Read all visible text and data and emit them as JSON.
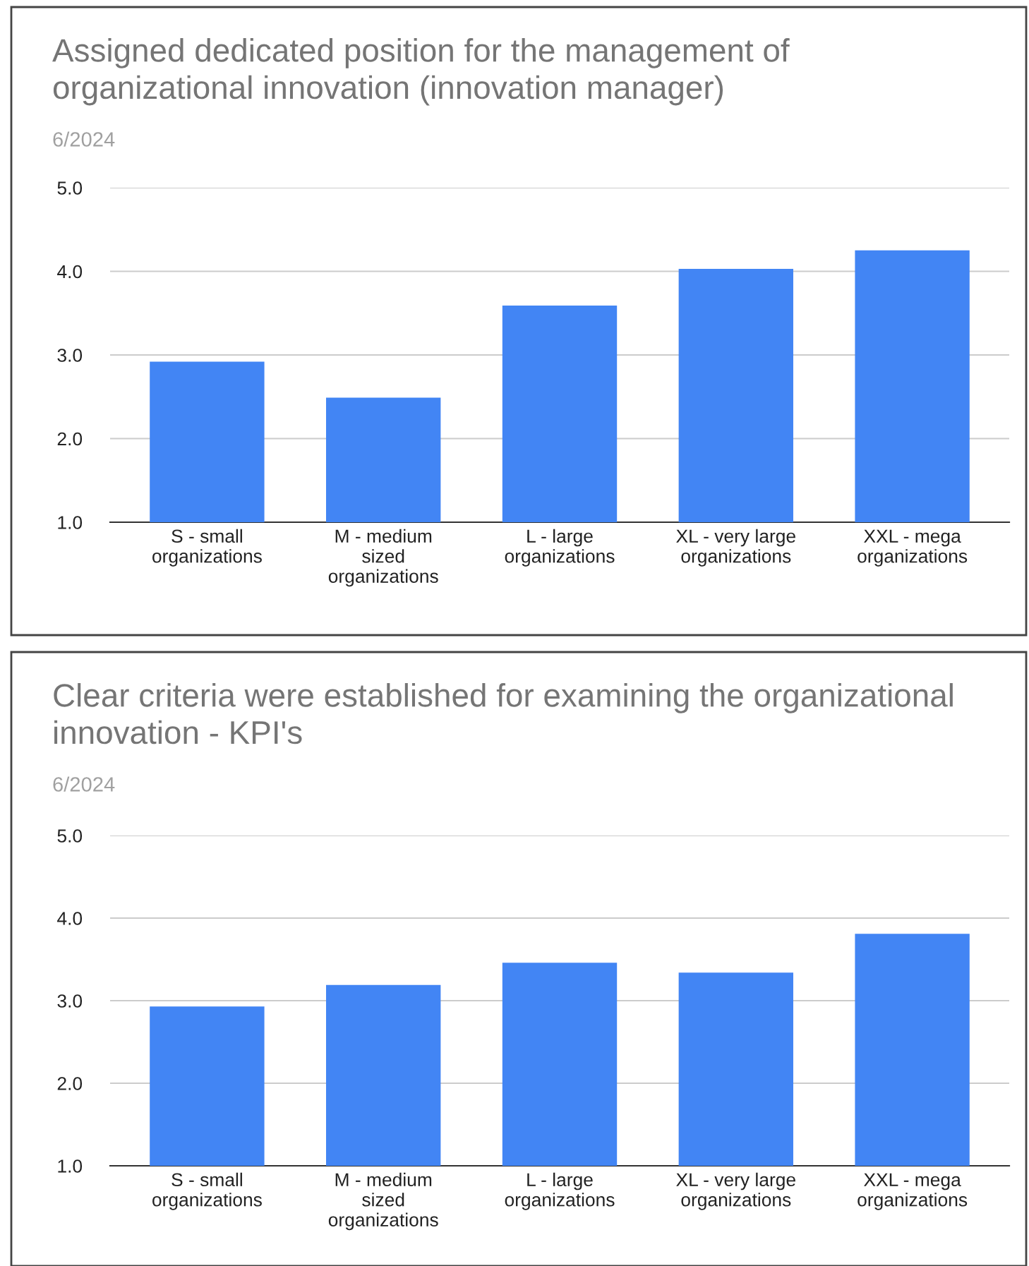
{
  "chart_data": [
    {
      "type": "bar",
      "title": "Assigned dedicated position for the management of\norganizational innovation (innovation manager)",
      "subtitle": "6/2024",
      "categories": [
        "S - small\norganizations",
        "M - medium\nsized\norganizations",
        "L - large\norganizations",
        "XL - very large\norganizations",
        "XXL - mega\norganizations"
      ],
      "values": [
        2.92,
        2.49,
        3.59,
        4.03,
        4.25
      ],
      "color": "#4285f4",
      "ylim": [
        1.0,
        5.0
      ],
      "yticks": [
        {
          "value": 1,
          "label": "1.0"
        },
        {
          "value": 2,
          "label": "2.0"
        },
        {
          "value": 3,
          "label": "3.0"
        },
        {
          "value": 4,
          "label": "4.0"
        },
        {
          "value": 5,
          "label": "5.0"
        }
      ],
      "grid": "y",
      "legend": false
    },
    {
      "type": "bar",
      "title": "Clear criteria were established for examining the organizational\ninnovation - KPI's",
      "subtitle": "6/2024",
      "categories": [
        "S - small\norganizations",
        "M - medium\nsized\norganizations",
        "L - large\norganizations",
        "XL - very large\norganizations",
        "XXL - mega\norganizations"
      ],
      "values": [
        2.93,
        3.19,
        3.46,
        3.34,
        3.81
      ],
      "color": "#4285f4",
      "ylim": [
        1.0,
        5.0
      ],
      "yticks": [
        {
          "value": 1,
          "label": "1.0"
        },
        {
          "value": 2,
          "label": "2.0"
        },
        {
          "value": 3,
          "label": "3.0"
        },
        {
          "value": 4,
          "label": "4.0"
        },
        {
          "value": 5,
          "label": "5.0"
        }
      ],
      "grid": "y",
      "legend": false
    }
  ]
}
